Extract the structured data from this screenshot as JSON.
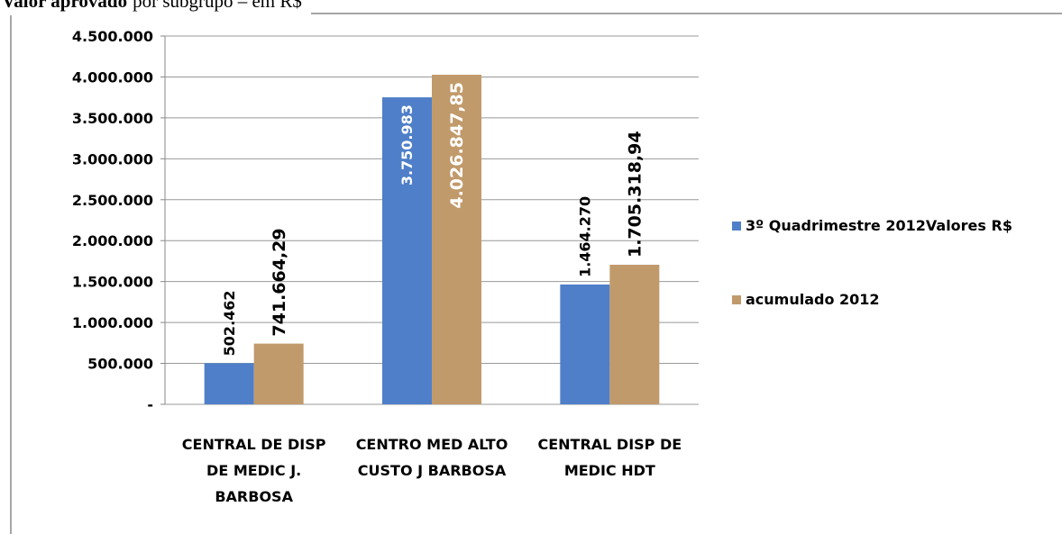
{
  "chart_data": {
    "type": "bar",
    "title": {
      "bold": "Valor aprovado",
      "normal": "por subgrupo – em R$"
    },
    "categories": [
      "CENTRAL DE DISP DE MEDIC J. BARBOSA",
      "CENTRO MED ALTO CUSTO J BARBOSA",
      "CENTRAL DISP DE MEDIC HDT"
    ],
    "series": [
      {
        "name": "3º Quadrimestre 2012Valores R$",
        "color": "#4f7fc9",
        "values": [
          502462,
          3750983,
          1464270
        ],
        "value_labels": [
          "502.462",
          "3.750.983",
          "1.464.270"
        ]
      },
      {
        "name": "acumulado 2012",
        "color": "#c19a6b",
        "values": [
          741664.29,
          4026847.85,
          1705318.94
        ],
        "value_labels": [
          "741.664,29",
          "4.026.847,85",
          "1.705.318,94"
        ]
      }
    ],
    "ylim": [
      0,
      4500000
    ],
    "yticks": [
      {
        "value": 0,
        "label": "-"
      },
      {
        "value": 500000,
        "label": "500.000"
      },
      {
        "value": 1000000,
        "label": "1.000.000"
      },
      {
        "value": 1500000,
        "label": "1.500.000"
      },
      {
        "value": 2000000,
        "label": "2.000.000"
      },
      {
        "value": 2500000,
        "label": "2.500.000"
      },
      {
        "value": 3000000,
        "label": "3.000.000"
      },
      {
        "value": 3500000,
        "label": "3.500.000"
      },
      {
        "value": 4000000,
        "label": "4.000.000"
      },
      {
        "value": 4500000,
        "label": "4.500.000"
      }
    ],
    "grid": true,
    "legend": "right"
  }
}
